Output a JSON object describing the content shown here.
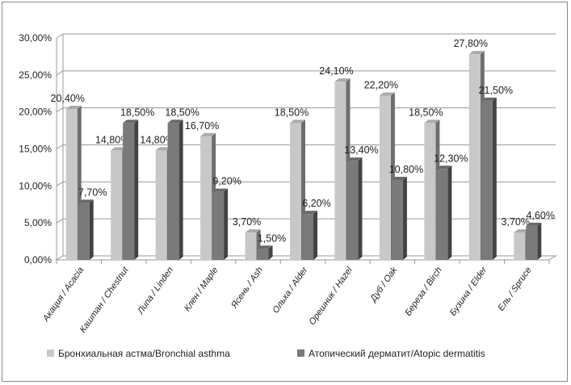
{
  "chart_data": {
    "type": "bar",
    "title": "",
    "xlabel": "",
    "ylabel": "",
    "ylim": [
      0,
      30
    ],
    "y_ticks": [
      "0,00%",
      "5,00%",
      "10,00%",
      "15,00%",
      "20,00%",
      "25,00%",
      "30,00%"
    ],
    "grid": true,
    "legend_position": "bottom",
    "categories": [
      "Акация / Acacia",
      "Каштан / Chestnut",
      "Липа / Linden",
      "Клен / Maple",
      "Ясень / Ash",
      "Ольха / Alder",
      "Орешник / Hazel",
      "Дуб / Oak",
      "Береза / Birch",
      "Бузина / Elder",
      "Ель / Spruce"
    ],
    "series": [
      {
        "name": "Бронхиальная астма/Bronchial asthma",
        "color": "#c8c8c8",
        "values": [
          20.4,
          14.8,
          14.8,
          16.7,
          3.7,
          18.5,
          24.1,
          22.2,
          18.5,
          27.8,
          3.7
        ],
        "labels": [
          "20,40%",
          "14,80%",
          "14,80%",
          "16,70%",
          "3,70%",
          "18,50%",
          "24,10%",
          "22,20%",
          "18,50%",
          "27,80%",
          "3,70%"
        ]
      },
      {
        "name": "Атопический дерматит/Atopic dermatitis",
        "color": "#7a7a7a",
        "values": [
          7.7,
          18.5,
          18.5,
          9.2,
          1.5,
          6.2,
          13.4,
          10.8,
          12.3,
          21.5,
          4.6
        ],
        "labels": [
          "7,70%",
          "18,50%",
          "18,50%",
          "9,20%",
          "1,50%",
          "6,20%",
          "13,40%",
          "10,80%",
          "12,30%",
          "21,50%",
          "4,60%"
        ]
      }
    ]
  }
}
